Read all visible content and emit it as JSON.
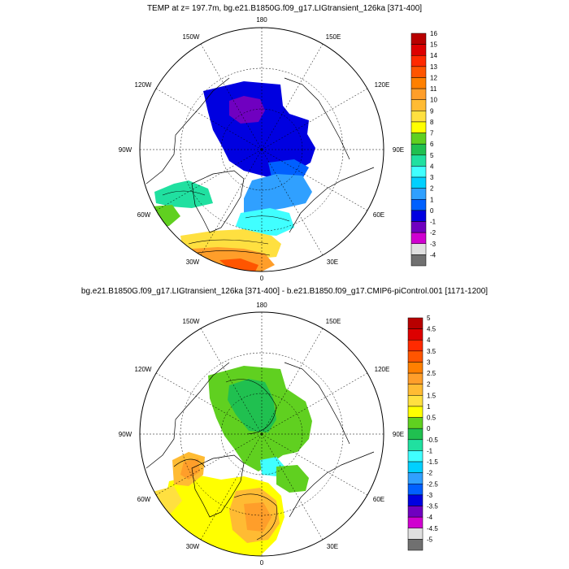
{
  "panels": [
    {
      "title": "TEMP at z= 197.7m, bg.e21.B1850G.f09_g17.LIGtransient_126ka [371-400]",
      "lon_labels": {
        "l180": "180",
        "l150e": "150E",
        "l120e": "120E",
        "l90e": "90E",
        "l60e": "60E",
        "l30e": "30E",
        "l0": "0",
        "l30w": "30W",
        "l60w": "60W",
        "l90w": "90W",
        "l120w": "120W",
        "l150w": "150W"
      },
      "colorbar": {
        "labels": [
          "16",
          "15",
          "14",
          "13",
          "12",
          "11",
          "10",
          "9",
          "8",
          "7",
          "6",
          "5",
          "4",
          "3",
          "2",
          "1",
          "0",
          "-1",
          "-2",
          "-3",
          "-4"
        ],
        "colors": [
          "#b80000",
          "#dd0000",
          "#ff2a00",
          "#ff5500",
          "#ff8000",
          "#ff9e2a",
          "#ffbb33",
          "#ffe040",
          "#ffff00",
          "#60d020",
          "#20c050",
          "#20e0a0",
          "#40ffff",
          "#00d0ff",
          "#30a0ff",
          "#0060ff",
          "#0000e0",
          "#7000c0",
          "#d000d0",
          "#e0e0e0",
          "#707070"
        ]
      }
    },
    {
      "title": "bg.e21.B1850G.f09_g17.LIGtransient_126ka [371-400] - b.e21.B1850.f09_g17.CMIP6-piControl.001 [1171-1200]",
      "lon_labels": {
        "l180": "180",
        "l150e": "150E",
        "l120e": "120E",
        "l90e": "90E",
        "l60e": "60E",
        "l30e": "30E",
        "l0": "0",
        "l30w": "30W",
        "l60w": "60W",
        "l90w": "90W",
        "l120w": "120W",
        "l150w": "150W"
      },
      "colorbar": {
        "labels": [
          "5",
          "4.5",
          "4",
          "3.5",
          "3",
          "2.5",
          "2",
          "1.5",
          "1",
          "0.5",
          "0",
          "-0.5",
          "-1",
          "-1.5",
          "-2",
          "-2.5",
          "-3",
          "-3.5",
          "-4",
          "-4.5",
          "-5"
        ],
        "colors": [
          "#b80000",
          "#dd0000",
          "#ff2a00",
          "#ff5500",
          "#ff8000",
          "#ff9e2a",
          "#ffbb33",
          "#ffe040",
          "#ffff00",
          "#60d020",
          "#20c050",
          "#20e0a0",
          "#40ffff",
          "#00d0ff",
          "#30a0ff",
          "#0060ff",
          "#0000e0",
          "#7000c0",
          "#d000d0",
          "#e0e0e0",
          "#707070"
        ]
      }
    }
  ]
}
